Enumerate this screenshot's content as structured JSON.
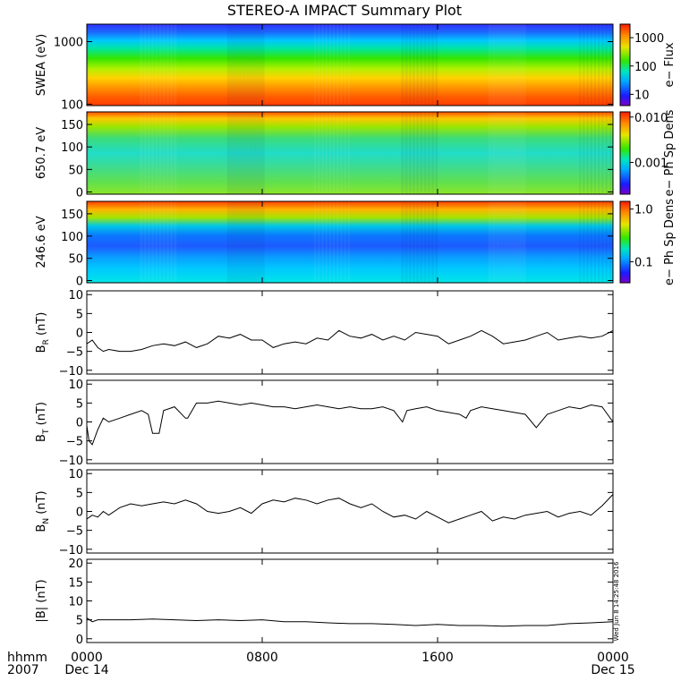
{
  "title": "STEREO-A IMPACT Summary Plot",
  "stamp": "Wed Jun 8 14:25:48 2016",
  "x_axis": {
    "corner_top": "hhmm",
    "corner_bottom": "2007",
    "ticks": [
      {
        "label": "0000",
        "hours": 0,
        "sub": "Dec 14"
      },
      {
        "label": "0800",
        "hours": 8,
        "sub": ""
      },
      {
        "label": "1600",
        "hours": 16,
        "sub": ""
      },
      {
        "label": "0000",
        "hours": 24,
        "sub": "Dec 15"
      }
    ],
    "range_hours": [
      0,
      24
    ]
  },
  "chart_data": [
    {
      "type": "heatmap",
      "ylabel": "SWEA (eV)",
      "ylog": true,
      "ylim": [
        95,
        1900
      ],
      "yticks": [
        {
          "v": 100,
          "label": "100"
        },
        {
          "v": 1000,
          "label": "1000"
        }
      ],
      "colorbar": {
        "label": "e− Flux",
        "log": true,
        "range": [
          4,
          3000
        ],
        "ticks": [
          {
            "v": 10,
            "label": "10"
          },
          {
            "v": 100,
            "label": "100"
          },
          {
            "v": 1000,
            "label": "1000"
          }
        ]
      }
    },
    {
      "type": "heatmap",
      "ylabel": "650.7 eV",
      "ylim": [
        -5,
        178
      ],
      "yticks": [
        {
          "v": 0,
          "label": "0"
        },
        {
          "v": 50,
          "label": "50"
        },
        {
          "v": 100,
          "label": "100"
        },
        {
          "v": 150,
          "label": "150"
        }
      ],
      "colorbar": {
        "label": "e− Ph Sp Dens",
        "log": true,
        "range": [
          0.0002,
          0.013
        ],
        "ticks": [
          {
            "v": 0.001,
            "label": "0.001"
          },
          {
            "v": 0.01,
            "label": "0.010"
          }
        ]
      }
    },
    {
      "type": "heatmap",
      "ylabel": "246.6 eV",
      "ylim": [
        -5,
        178
      ],
      "yticks": [
        {
          "v": 0,
          "label": "0"
        },
        {
          "v": 50,
          "label": "50"
        },
        {
          "v": 100,
          "label": "100"
        },
        {
          "v": 150,
          "label": "150"
        }
      ],
      "colorbar": {
        "label": "e− Ph Sp Dens",
        "log": true,
        "range": [
          0.04,
          1.4
        ],
        "ticks": [
          {
            "v": 0.1,
            "label": "0.1"
          },
          {
            "v": 1.0,
            "label": "1.0"
          }
        ]
      }
    },
    {
      "type": "line",
      "ylabel": "B",
      "ylabel_sub": "R",
      "ylabel_unit": "(nT)",
      "ylim": [
        -11,
        11
      ],
      "yticks": [
        {
          "v": -10,
          "label": "−10"
        },
        {
          "v": -5,
          "label": "−5"
        },
        {
          "v": 0,
          "label": "0"
        },
        {
          "v": 5,
          "label": "5"
        },
        {
          "v": 10,
          "label": "10"
        }
      ],
      "series": [
        {
          "x": [
            0,
            0.25,
            0.5,
            0.75,
            1,
            1.5,
            2,
            2.5,
            3,
            3.5,
            4,
            4.5,
            5,
            5.5,
            6,
            6.5,
            7,
            7.5,
            8,
            8.5,
            9,
            9.5,
            10,
            10.5,
            11,
            11.5,
            12,
            12.5,
            13,
            13.5,
            14,
            14.5,
            15,
            15.5,
            16,
            16.5,
            17,
            17.5,
            18,
            18.5,
            19,
            19.5,
            20,
            20.5,
            21,
            21.5,
            22,
            22.5,
            23,
            23.5,
            24
          ],
          "values": [
            -3,
            -2,
            -4,
            -5,
            -4.5,
            -5,
            -5,
            -4.5,
            -3.5,
            -3,
            -3.5,
            -2.5,
            -4,
            -3,
            -1,
            -1.5,
            -0.5,
            -2,
            -2,
            -4,
            -3,
            -2.5,
            -3,
            -1.5,
            -2,
            0.5,
            -1,
            -1.5,
            -0.5,
            -2,
            -1,
            -2,
            0,
            -0.5,
            -1,
            -3,
            -2,
            -1,
            0.5,
            -1,
            -3,
            -2.5,
            -2,
            -1,
            0,
            -2,
            -1.5,
            -1,
            -1.5,
            -1,
            0.5
          ]
        }
      ]
    },
    {
      "type": "line",
      "ylabel": "B",
      "ylabel_sub": "T",
      "ylabel_unit": "(nT)",
      "ylim": [
        -11,
        11
      ],
      "yticks": [
        {
          "v": -10,
          "label": "−10"
        },
        {
          "v": -5,
          "label": "−5"
        },
        {
          "v": 0,
          "label": "0"
        },
        {
          "v": 5,
          "label": "5"
        },
        {
          "v": 10,
          "label": "10"
        }
      ],
      "series": [
        {
          "x": [
            0,
            0.1,
            0.25,
            0.5,
            0.75,
            1,
            1.5,
            2,
            2.5,
            2.8,
            3,
            3.3,
            3.5,
            4,
            4.5,
            4.6,
            5,
            5.5,
            6,
            6.5,
            7,
            7.5,
            8,
            8.5,
            9,
            9.5,
            10,
            10.5,
            11,
            11.5,
            12,
            12.5,
            13,
            13.5,
            14,
            14.4,
            14.6,
            15,
            15.5,
            16,
            16.5,
            17,
            17.3,
            17.5,
            18,
            18.5,
            19,
            19.5,
            20,
            20.5,
            21,
            21.5,
            22,
            22.5,
            23,
            23.5,
            24
          ],
          "values": [
            -1,
            -5,
            -6,
            -2,
            1,
            0,
            1,
            2,
            3,
            2,
            -3,
            -3,
            3,
            4,
            1,
            1,
            5,
            5,
            5.5,
            5,
            4.5,
            5,
            4.5,
            4,
            4,
            3.5,
            4,
            4.5,
            4,
            3.5,
            4,
            3.5,
            3.5,
            4,
            3,
            0,
            3,
            3.5,
            4,
            3,
            2.5,
            2,
            1,
            3,
            4,
            3.5,
            3,
            2.5,
            2,
            -1.5,
            2,
            3,
            4,
            3.5,
            4.5,
            4,
            0
          ]
        }
      ]
    },
    {
      "type": "line",
      "ylabel": "B",
      "ylabel_sub": "N",
      "ylabel_unit": "(nT)",
      "ylim": [
        -11,
        11
      ],
      "yticks": [
        {
          "v": -10,
          "label": "−10"
        },
        {
          "v": -5,
          "label": "−5"
        },
        {
          "v": 0,
          "label": "0"
        },
        {
          "v": 5,
          "label": "5"
        },
        {
          "v": 10,
          "label": "10"
        }
      ],
      "series": [
        {
          "x": [
            0,
            0.25,
            0.5,
            0.75,
            1,
            1.5,
            2,
            2.5,
            3,
            3.5,
            4,
            4.5,
            5,
            5.5,
            6,
            6.5,
            7,
            7.5,
            8,
            8.5,
            9,
            9.5,
            10,
            10.5,
            11,
            11.5,
            12,
            12.5,
            13,
            13.5,
            14,
            14.5,
            15,
            15.5,
            16,
            16.5,
            17,
            17.5,
            18,
            18.5,
            19,
            19.5,
            20,
            20.5,
            21,
            21.5,
            22,
            22.5,
            23,
            23.5,
            24
          ],
          "values": [
            -2,
            -1,
            -1.5,
            0,
            -1,
            1,
            2,
            1.5,
            2,
            2.5,
            2,
            3,
            2,
            0,
            -0.5,
            0,
            1,
            -0.5,
            2,
            3,
            2.5,
            3.5,
            3,
            2,
            3,
            3.5,
            2,
            1,
            2,
            0,
            -1.5,
            -1,
            -2,
            0,
            -1.5,
            -3,
            -2,
            -1,
            0,
            -2.5,
            -1.5,
            -2,
            -1,
            -0.5,
            0,
            -1.5,
            -0.5,
            0,
            -1,
            1.5,
            4.5
          ]
        }
      ]
    },
    {
      "type": "line",
      "ylabel": "|B| (nT)",
      "ylim": [
        -1,
        21
      ],
      "yticks": [
        {
          "v": 0,
          "label": "0"
        },
        {
          "v": 5,
          "label": "5"
        },
        {
          "v": 10,
          "label": "10"
        },
        {
          "v": 15,
          "label": "15"
        },
        {
          "v": 20,
          "label": "20"
        }
      ],
      "series": [
        {
          "x": [
            0,
            0.25,
            0.5,
            1,
            2,
            3,
            4,
            5,
            6,
            7,
            8,
            9,
            10,
            11,
            12,
            13,
            14,
            15,
            16,
            17,
            18,
            19,
            20,
            21,
            22,
            23,
            24
          ],
          "values": [
            5.5,
            4.5,
            5,
            5,
            5,
            5.2,
            5,
            4.8,
            5,
            4.8,
            5,
            4.5,
            4.5,
            4.2,
            4,
            4,
            3.8,
            3.5,
            3.8,
            3.5,
            3.5,
            3.3,
            3.5,
            3.5,
            4,
            4.2,
            4.5
          ]
        }
      ]
    }
  ]
}
